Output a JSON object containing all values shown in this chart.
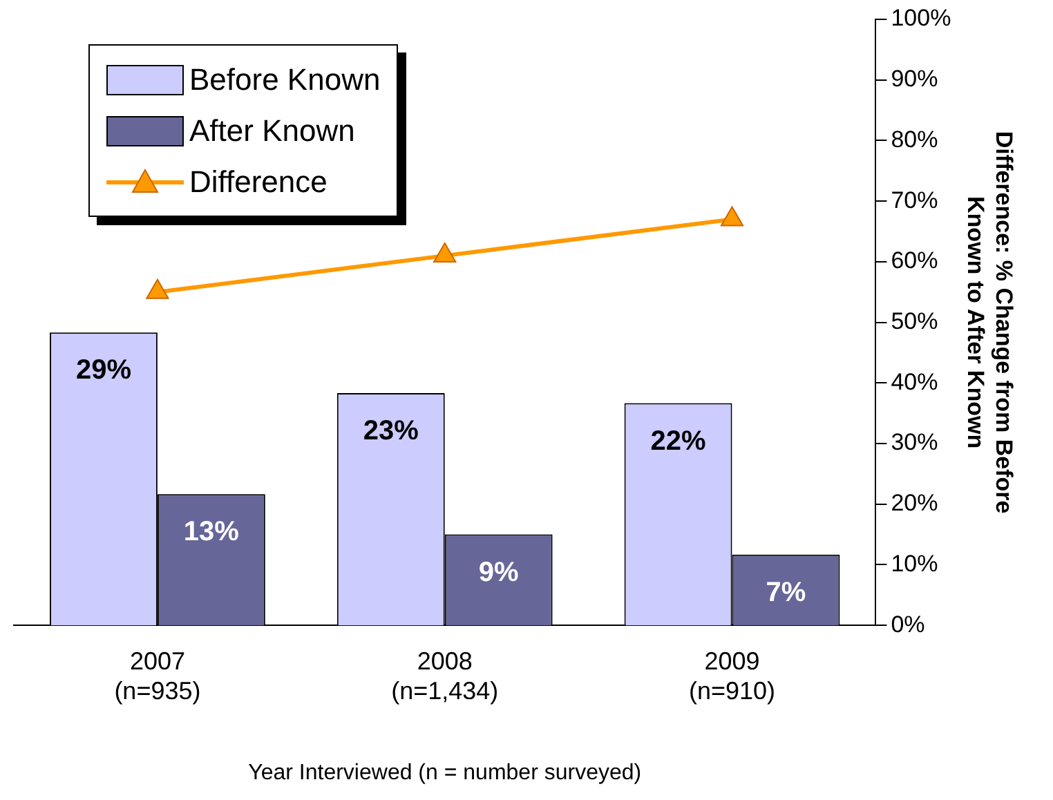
{
  "chart_data": {
    "type": "bar",
    "categories": [
      "2007\n(n=935)",
      "2008\n(n=1,434)",
      "2009\n(n=910)"
    ],
    "xlabel": "Year Interviewed (n = number surveyed)",
    "y2label": "Difference: % Change from Before Known to After Known",
    "ylim": [
      0,
      60
    ],
    "y2lim": [
      0,
      100
    ],
    "y2ticks": [
      {
        "value": 0,
        "label": "0%"
      },
      {
        "value": 10,
        "label": "10%"
      },
      {
        "value": 20,
        "label": "20%"
      },
      {
        "value": 30,
        "label": "30%"
      },
      {
        "value": 40,
        "label": "40%"
      },
      {
        "value": 50,
        "label": "50%"
      },
      {
        "value": 60,
        "label": "60%"
      },
      {
        "value": 70,
        "label": "70%"
      },
      {
        "value": 80,
        "label": "80%"
      },
      {
        "value": 90,
        "label": "90%"
      },
      {
        "value": 100,
        "label": "100%"
      }
    ],
    "series": [
      {
        "name": "Before Known",
        "color": "#ccccff",
        "values": [
          29,
          23,
          22
        ],
        "value_labels": [
          "29%",
          "23%",
          "22%"
        ]
      },
      {
        "name": "After Known",
        "color": "#666699",
        "values": [
          13,
          9,
          7
        ],
        "value_labels": [
          "13%",
          "9%",
          "7%"
        ]
      },
      {
        "name": "Difference",
        "type": "line",
        "axis": "y2",
        "color": "#ff9900",
        "values": [
          55,
          61,
          67
        ],
        "marker": "triangle"
      }
    ],
    "legend": "top left",
    "grid": false
  }
}
